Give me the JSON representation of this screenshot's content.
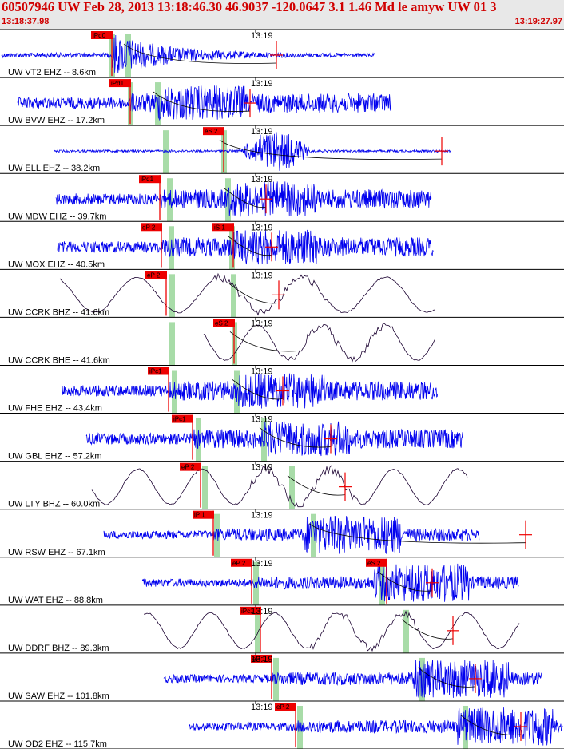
{
  "header": {
    "title": "60507946 UW Feb 28, 2013 13:18:46.30   46.9037 -120.0647  3.1 1.46 Md le amyw UW 01   3",
    "start_time": "13:18:37.98",
    "end_time": "13:19:27.97"
  },
  "colors": {
    "header_bg": "#e8e8e8",
    "header_text": "#d00000",
    "trace_short_period": "#0000ee",
    "trace_broadband": "#1a0030",
    "pick_box": "#ee0000",
    "pick_band": "#a8dca8",
    "separator": "#000000"
  },
  "chart_data": {
    "type": "seismogram",
    "time_tick_label": "13:19",
    "time_range": [
      "13:18:37.98",
      "13:19:27.97"
    ],
    "traces": [
      {
        "label": "UW VT2 EHZ -- 8.6km",
        "picks": [
          "iPd0"
        ],
        "style": "impulsive"
      },
      {
        "label": "UW BVW EHZ -- 17.2km",
        "picks": [
          "iPd1"
        ],
        "style": "noisy"
      },
      {
        "label": "UW ELL EHZ -- 38.2km",
        "picks": [
          "eS 2"
        ],
        "style": "emergent"
      },
      {
        "label": "UW MDW EHZ -- 39.7km",
        "picks": [
          "iPd1"
        ],
        "style": "noisy"
      },
      {
        "label": "UW MOX EHZ -- 40.5km",
        "picks": [
          "eP 2",
          "iS 1"
        ],
        "style": "noisy"
      },
      {
        "label": "UW CCRK BHZ -- 41.6km",
        "picks": [
          "eP 2"
        ],
        "style": "long-period"
      },
      {
        "label": "UW CCRK BHE -- 41.6km",
        "picks": [
          "eS 2"
        ],
        "style": "long-period"
      },
      {
        "label": "UW FHE EHZ -- 43.4km",
        "picks": [
          "iPc1"
        ],
        "style": "noisy"
      },
      {
        "label": "UW GBL EHZ -- 57.2km",
        "picks": [
          "iPc1"
        ],
        "style": "noisy"
      },
      {
        "label": "UW LTY BHZ -- 60.0km",
        "picks": [
          "eP 2"
        ],
        "style": "long-period"
      },
      {
        "label": "UW RSW EHZ -- 67.1km",
        "picks": [
          "iP 1"
        ],
        "style": "late-burst"
      },
      {
        "label": "UW WAT EHZ -- 88.8km",
        "picks": [
          "eP 2",
          "eS 2"
        ],
        "style": "late-burst"
      },
      {
        "label": "UW DDRF BHZ -- 89.3km",
        "picks": [
          "iPc1"
        ],
        "style": "long-period"
      },
      {
        "label": "UW SAW EHZ -- 101.8km",
        "picks": [
          "eP 1"
        ],
        "style": "late-burst"
      },
      {
        "label": "UW OD2 EHZ -- 115.7km",
        "picks": [
          "eP 2"
        ],
        "style": "late-burst"
      }
    ]
  }
}
